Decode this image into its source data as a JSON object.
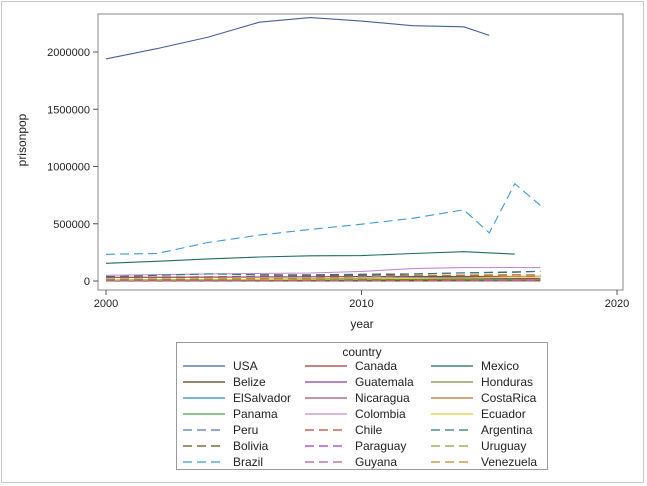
{
  "chart_data": {
    "type": "line",
    "xlabel": "year",
    "ylabel": "prisonpop",
    "xlim": [
      2000,
      2020
    ],
    "ylim": [
      0,
      2300000
    ],
    "xticks": [
      2000,
      2010,
      2020
    ],
    "yticks": [
      0,
      500000,
      1000000,
      1500000,
      2000000
    ],
    "xtick_labels": [
      "2000",
      "2010",
      "2020"
    ],
    "ytick_labels": [
      "0",
      "500000",
      "1000000",
      "1500000",
      "2000000"
    ],
    "grid": false,
    "legend_title": "country",
    "legend_position": "bottom",
    "series": [
      {
        "name": "USA",
        "color": "#44609a",
        "dash": "solid",
        "x": [
          2000,
          2002,
          2004,
          2006,
          2008,
          2010,
          2012,
          2014,
          2015
        ],
        "y": [
          1940000,
          2030000,
          2130000,
          2260000,
          2300000,
          2270000,
          2230000,
          2220000,
          2145000
        ]
      },
      {
        "name": "Canada",
        "color": "#a23a3a",
        "dash": "solid",
        "x": [
          2000,
          2005,
          2010,
          2015,
          2017
        ],
        "y": [
          32000,
          34000,
          38000,
          40000,
          41000
        ]
      },
      {
        "name": "Mexico",
        "color": "#1f6e60",
        "dash": "solid",
        "x": [
          2000,
          2002,
          2004,
          2006,
          2008,
          2010,
          2012,
          2014,
          2016
        ],
        "y": [
          155000,
          172000,
          193000,
          210000,
          220000,
          222000,
          240000,
          256000,
          235000
        ]
      },
      {
        "name": "Belize",
        "color": "#5a3a12",
        "dash": "solid",
        "x": [
          2000,
          2010,
          2017
        ],
        "y": [
          1100,
          1300,
          1400
        ]
      },
      {
        "name": "Guatemala",
        "color": "#8a3aa8",
        "dash": "solid",
        "x": [
          2000,
          2005,
          2010,
          2015,
          2017
        ],
        "y": [
          8000,
          8500,
          11000,
          20000,
          23000
        ]
      },
      {
        "name": "Honduras",
        "color": "#8a8a3a",
        "dash": "solid",
        "x": [
          2000,
          2005,
          2010,
          2015,
          2017
        ],
        "y": [
          10000,
          11000,
          12000,
          15000,
          18000
        ]
      },
      {
        "name": "ElSalvador",
        "color": "#2e86c1",
        "dash": "solid",
        "x": [
          2000,
          2005,
          2010,
          2015,
          2017
        ],
        "y": [
          7500,
          12000,
          24000,
          33000,
          38000
        ]
      },
      {
        "name": "Nicaragua",
        "color": "#a0507a",
        "dash": "solid",
        "x": [
          2000,
          2005,
          2010,
          2015,
          2017
        ],
        "y": [
          6000,
          6500,
          8000,
          12000,
          15000
        ]
      },
      {
        "name": "CostaRica",
        "color": "#b8742a",
        "dash": "solid",
        "x": [
          2000,
          2005,
          2010,
          2015,
          2017
        ],
        "y": [
          8000,
          8500,
          11000,
          14000,
          16000
        ]
      },
      {
        "name": "Panama",
        "color": "#4aa04a",
        "dash": "solid",
        "x": [
          2000,
          2005,
          2010,
          2015,
          2016
        ],
        "y": [
          8500,
          11000,
          12500,
          15000,
          16500
        ]
      },
      {
        "name": "Colombia",
        "color": "#c28ad8",
        "dash": "solid",
        "x": [
          2000,
          2004,
          2008,
          2010,
          2012,
          2014,
          2016,
          2017
        ],
        "y": [
          50000,
          62000,
          70000,
          84000,
          108000,
          117000,
          118000,
          117000
        ]
      },
      {
        "name": "Ecuador",
        "color": "#e8c838",
        "dash": "solid",
        "x": [
          2000,
          2005,
          2010,
          2014,
          2016,
          2017
        ],
        "y": [
          8000,
          11000,
          18000,
          26000,
          36000,
          38000
        ]
      },
      {
        "name": "Peru",
        "color": "#5570b8",
        "dash": "dash",
        "x": [
          2000,
          2004,
          2008,
          2010,
          2012,
          2014,
          2016,
          2017
        ],
        "y": [
          28000,
          32000,
          43000,
          46000,
          61000,
          72000,
          80000,
          85000
        ]
      },
      {
        "name": "Chile",
        "color": "#b84a3a",
        "dash": "dash",
        "x": [
          2000,
          2004,
          2008,
          2010,
          2012,
          2014,
          2016,
          2017
        ],
        "y": [
          33000,
          37000,
          50000,
          53000,
          49000,
          45000,
          44000,
          43000
        ]
      },
      {
        "name": "Argentina",
        "color": "#2a7a72",
        "dash": "dash",
        "x": [
          2000,
          2002,
          2004,
          2006,
          2008,
          2010,
          2012,
          2014,
          2016,
          2017
        ],
        "y": [
          38000,
          50000,
          62000,
          55000,
          54000,
          59000,
          62000,
          70000,
          76000,
          85000
        ]
      },
      {
        "name": "Bolivia",
        "color": "#6a4a1a",
        "dash": "dash",
        "x": [
          2000,
          2005,
          2010,
          2015,
          2017
        ],
        "y": [
          8000,
          7000,
          11000,
          14000,
          16000
        ]
      },
      {
        "name": "Paraguay",
        "color": "#9a3ac8",
        "dash": "dash",
        "x": [
          2000,
          2005,
          2010,
          2015,
          2017
        ],
        "y": [
          4000,
          6000,
          7000,
          11000,
          14000
        ]
      },
      {
        "name": "Uruguay",
        "color": "#9a9a3a",
        "dash": "dash",
        "x": [
          2000,
          2005,
          2010,
          2015,
          2017
        ],
        "y": [
          4500,
          6500,
          9000,
          10500,
          11000
        ]
      },
      {
        "name": "Brazil",
        "color": "#3a9ad8",
        "dash": "dash",
        "x": [
          2000,
          2002,
          2004,
          2006,
          2008,
          2010,
          2012,
          2014,
          2015,
          2016,
          2017
        ],
        "y": [
          233000,
          240000,
          336000,
          401000,
          451000,
          496000,
          548000,
          622000,
          420000,
          850000,
          660000
        ]
      },
      {
        "name": "Guyana",
        "color": "#b85a8a",
        "dash": "dash",
        "x": [
          2000,
          2010,
          2017
        ],
        "y": [
          1500,
          2000,
          2000
        ]
      },
      {
        "name": "Venezuela",
        "color": "#c8882a",
        "dash": "dash",
        "x": [
          2000,
          2004,
          2008,
          2012,
          2016,
          2017
        ],
        "y": [
          15000,
          19000,
          24000,
          48000,
          57000,
          54000
        ]
      }
    ]
  }
}
